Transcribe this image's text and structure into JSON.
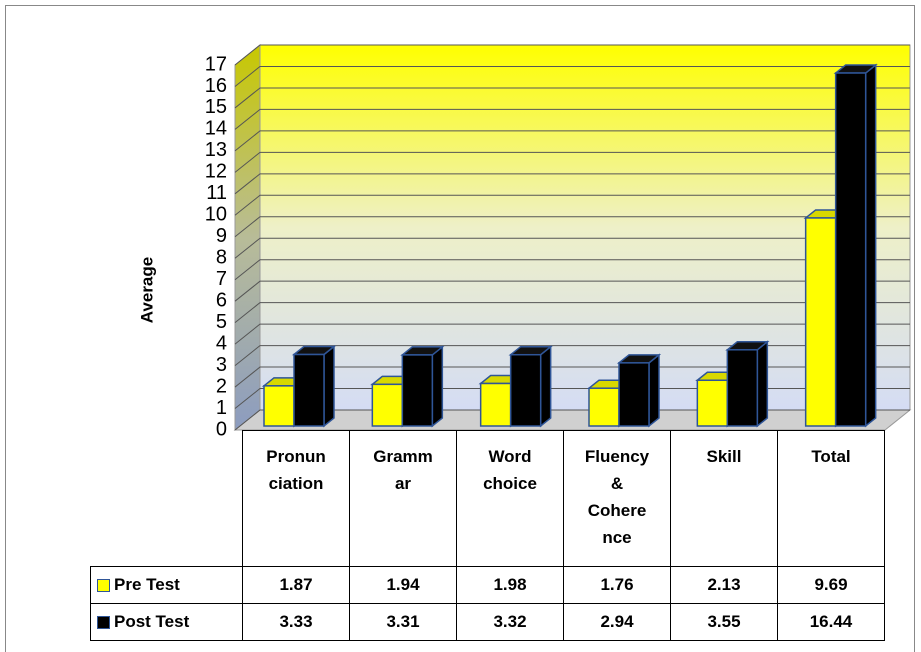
{
  "chart_data": {
    "type": "bar3d",
    "y_label": "Average",
    "categories": [
      "Pronun\nciation",
      "Gramm\nar",
      "Word\nchoice",
      "Fluency\n&\nCohere\nnce",
      "Skill",
      "Total"
    ],
    "series": [
      {
        "name": "Pre Test",
        "color": "#ffff00",
        "values": [
          1.87,
          1.94,
          1.98,
          1.76,
          2.13,
          9.69
        ]
      },
      {
        "name": "Post Test",
        "color": "#000000",
        "values": [
          3.33,
          3.31,
          3.32,
          2.94,
          3.55,
          16.44
        ]
      }
    ],
    "ylim": [
      0,
      17
    ],
    "yticks": [
      0,
      1,
      2,
      3,
      4,
      5,
      6,
      7,
      8,
      9,
      10,
      11,
      12,
      13,
      14,
      15,
      16,
      17
    ],
    "grid": true
  }
}
